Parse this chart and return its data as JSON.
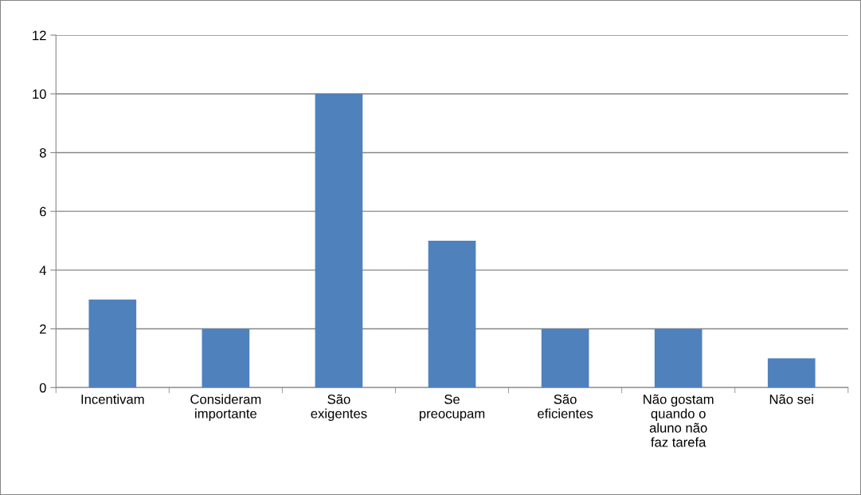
{
  "chart_data": {
    "type": "bar",
    "categories": [
      "Incentivam",
      "Consideram importante",
      "São exigentes",
      "Se preocupam",
      "São eficientes",
      "Não gostam quando o aluno não faz tarefa",
      "Não sei"
    ],
    "values": [
      3,
      2,
      10,
      5,
      2,
      2,
      1
    ],
    "color": "#4f81bd",
    "ylim": [
      0,
      12
    ],
    "yticks": [
      0,
      2,
      4,
      6,
      8,
      10,
      12
    ],
    "grid": "y",
    "legend": false
  }
}
